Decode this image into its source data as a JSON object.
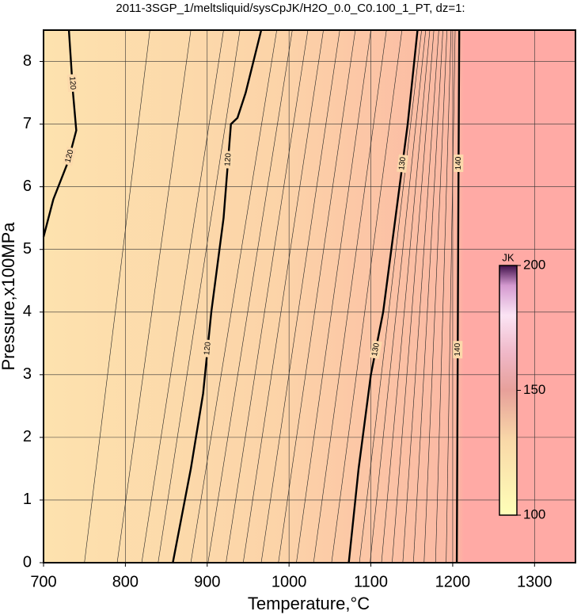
{
  "chart_data": {
    "type": "contour",
    "title": "2011-3SGP_1/meltsliquid/sysCpJK/H2O_0.0_C0.100_1_PT, dz=1:",
    "x_label": "Temperature,°C",
    "y_label": "Pressure,x100MPa",
    "xlim": [
      700,
      1350
    ],
    "xticks": [
      700,
      800,
      900,
      1000,
      1100,
      1200,
      1300
    ],
    "ylim": [
      0,
      8.5
    ],
    "yticks": [
      0,
      1,
      2,
      3,
      4,
      5,
      6,
      7,
      8
    ],
    "grid": true,
    "contours": [
      {
        "level": 120,
        "x": [
          858,
          880,
          895,
          905,
          920,
          929,
          937,
          947,
          966
        ],
        "y": [
          0,
          1.5,
          2.7,
          4,
          5.5,
          7,
          7.1,
          7.5,
          8.5
        ]
      },
      {
        "level": 120,
        "x": [
          700,
          712,
          730,
          740,
          736,
          731
        ],
        "y": [
          5.2,
          5.8,
          6.4,
          6.9,
          7.5,
          8.5
        ]
      },
      {
        "level": 130,
        "x": [
          1073,
          1085,
          1100,
          1115,
          1130,
          1145,
          1157
        ],
        "y": [
          0,
          1.5,
          3,
          4,
          5.5,
          7,
          8.5
        ]
      },
      {
        "level": 140,
        "x": [
          1205,
          1206,
          1207,
          1208
        ],
        "y": [
          0,
          3,
          6,
          8.5
        ]
      }
    ],
    "minor_contours": [
      {
        "level": 116,
        "x": [
          750,
          830
        ],
        "y": [
          0,
          8.5
        ]
      },
      {
        "level": 117,
        "x": [
          790,
          880
        ],
        "y": [
          0,
          8.5
        ]
      },
      {
        "level": 118,
        "x": [
          820,
          920
        ],
        "y": [
          0,
          8.5
        ]
      },
      {
        "level": 119,
        "x": [
          840,
          940
        ],
        "y": [
          0,
          8.5
        ]
      },
      {
        "level": 121,
        "x": [
          880,
          985
        ],
        "y": [
          0,
          8.5
        ]
      },
      {
        "level": 122,
        "x": [
          901,
          1004
        ],
        "y": [
          0,
          8.5
        ]
      },
      {
        "level": 123,
        "x": [
          923,
          1023
        ],
        "y": [
          0,
          8.5
        ]
      },
      {
        "level": 124,
        "x": [
          944,
          1042
        ],
        "y": [
          0,
          8.5
        ]
      },
      {
        "level": 125,
        "x": [
          966,
          1062
        ],
        "y": [
          0,
          8.5
        ]
      },
      {
        "level": 126,
        "x": [
          987,
          1081
        ],
        "y": [
          0,
          8.5
        ]
      },
      {
        "level": 127,
        "x": [
          1009,
          1100
        ],
        "y": [
          0,
          8.5
        ]
      },
      {
        "level": 128,
        "x": [
          1030,
          1119
        ],
        "y": [
          0,
          8.5
        ]
      },
      {
        "level": 129,
        "x": [
          1052,
          1138
        ],
        "y": [
          0,
          8.5
        ]
      },
      {
        "level": 131,
        "x": [
          1086,
          1162
        ],
        "y": [
          0,
          8.5
        ]
      },
      {
        "level": 132,
        "x": [
          1099,
          1167
        ],
        "y": [
          0,
          8.5
        ]
      },
      {
        "level": 133,
        "x": [
          1113,
          1172
        ],
        "y": [
          0,
          8.5
        ]
      },
      {
        "level": 134,
        "x": [
          1126,
          1177
        ],
        "y": [
          0,
          8.5
        ]
      },
      {
        "level": 135,
        "x": [
          1139,
          1183
        ],
        "y": [
          0,
          8.5
        ]
      },
      {
        "level": 136,
        "x": [
          1152,
          1188
        ],
        "y": [
          0,
          8.5
        ]
      },
      {
        "level": 137,
        "x": [
          1165,
          1193
        ],
        "y": [
          0,
          8.5
        ]
      },
      {
        "level": 138,
        "x": [
          1179,
          1198
        ],
        "y": [
          0,
          8.5
        ]
      },
      {
        "level": 139,
        "x": [
          1192,
          1203
        ],
        "y": [
          0,
          8.5
        ]
      }
    ],
    "colorbar": {
      "label": "JK",
      "lim": [
        100,
        200
      ],
      "ticks": [
        100,
        150,
        200
      ]
    }
  }
}
